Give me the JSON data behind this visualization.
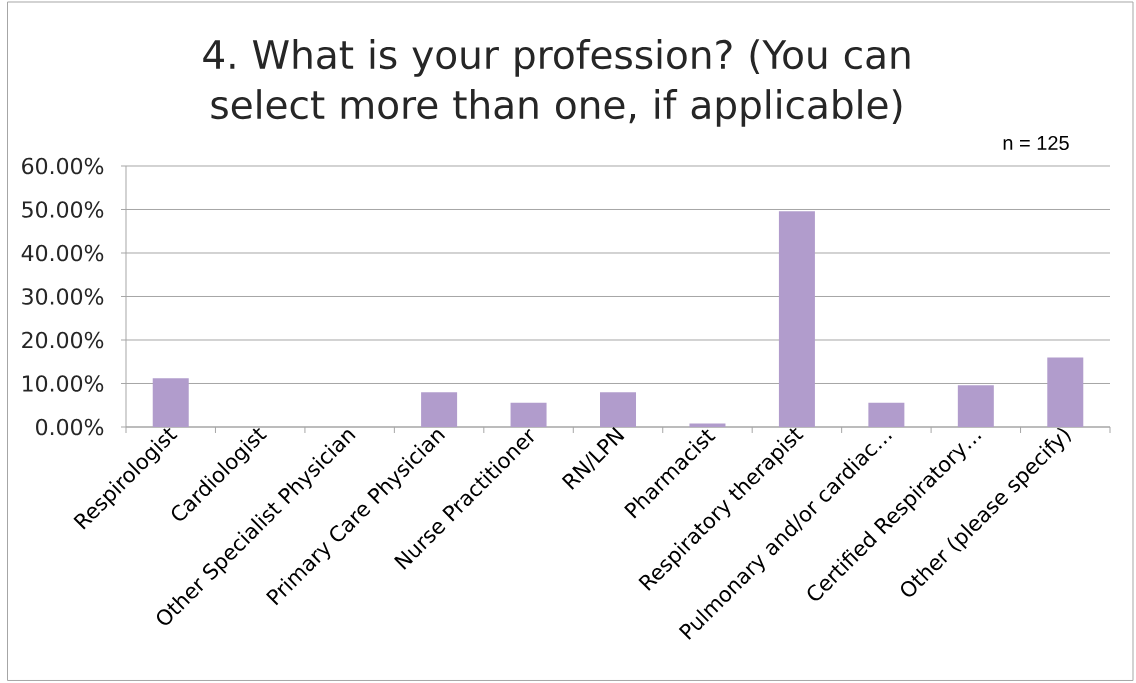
{
  "chart_data": {
    "type": "bar",
    "title": "4. What is your profession? (You can select more than one, if applicable)",
    "annotations": [
      "n = 125"
    ],
    "categories": [
      "Respirologist",
      "Cardiologist",
      "Other Specialist Physician",
      "Primary Care Physician",
      "Nurse Practitioner",
      "RN/LPN",
      "Pharmacist",
      "Respiratory therapist",
      "Pulmonary and/or cardiac…",
      "Certified Respiratory…",
      "Other (please specify)"
    ],
    "values": [
      11.2,
      0,
      0,
      8.0,
      5.6,
      8.0,
      0.8,
      49.6,
      5.6,
      9.6,
      16.0
    ],
    "color": "#b19ccc",
    "ylim": [
      0,
      60
    ],
    "yticks": [
      {
        "value": 0,
        "label": "0.00%"
      },
      {
        "value": 10,
        "label": "10.00%"
      },
      {
        "value": 20,
        "label": "20.00%"
      },
      {
        "value": 30,
        "label": "30.00%"
      },
      {
        "value": 40,
        "label": "40.00%"
      },
      {
        "value": 50,
        "label": "50.00%"
      },
      {
        "value": 60,
        "label": "60.00%"
      }
    ],
    "grid": "y"
  }
}
